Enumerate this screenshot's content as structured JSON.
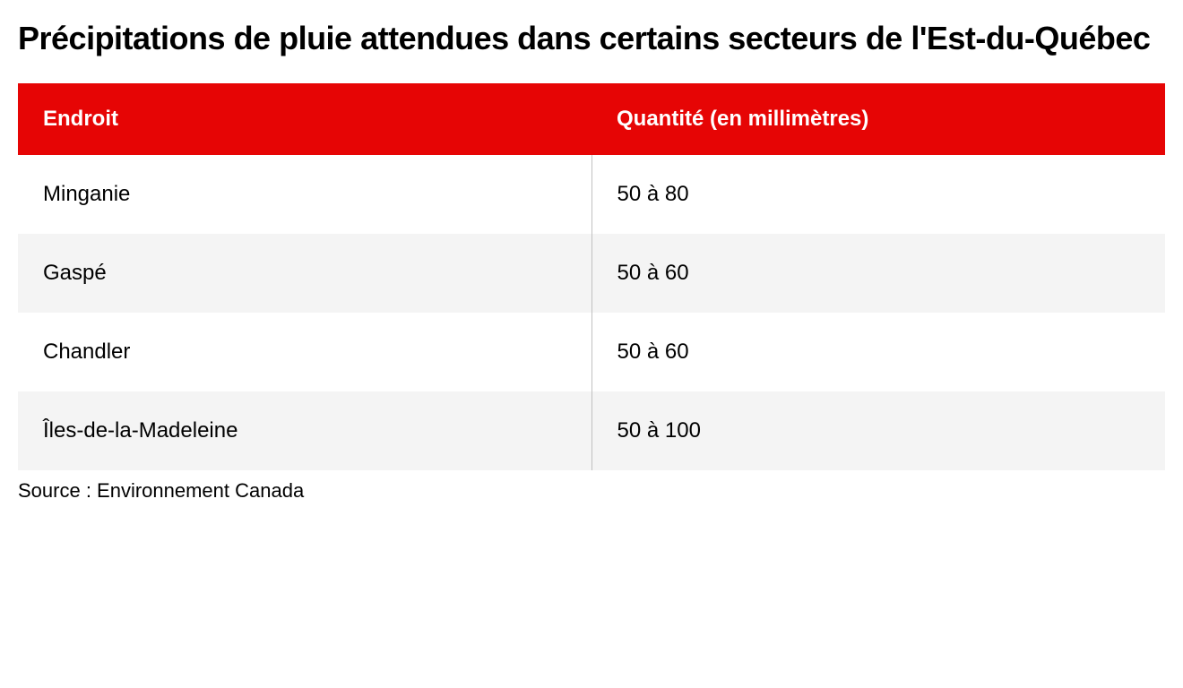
{
  "title": "Précipitations de pluie attendues dans certains secteurs de l'Est-du-Québec",
  "table": {
    "type": "table",
    "columns": [
      {
        "label": "Endroit",
        "align": "left"
      },
      {
        "label": "Quantité (en millimètres)",
        "align": "left"
      }
    ],
    "rows": [
      {
        "cells": [
          "Minganie",
          "50 à 80"
        ],
        "bg": "#ffffff"
      },
      {
        "cells": [
          "Gaspé",
          "50 à 60"
        ],
        "bg": "#f4f4f4"
      },
      {
        "cells": [
          "Chandler",
          "50 à 60"
        ],
        "bg": "#ffffff"
      },
      {
        "cells": [
          "Îles-de-la-Madeleine",
          "50 à 100"
        ],
        "bg": "#f4f4f4"
      }
    ],
    "header_bg": "#e60505",
    "header_text_color": "#ffffff",
    "row_even_bg": "#f4f4f4",
    "row_odd_bg": "#ffffff",
    "divider_color": "#c0c0c0",
    "header_fontsize": 24,
    "cell_fontsize": 24
  },
  "source": "Source : Environnement Canada",
  "title_fontsize": 36,
  "source_fontsize": 22,
  "text_color": "#000000",
  "background_color": "#ffffff"
}
